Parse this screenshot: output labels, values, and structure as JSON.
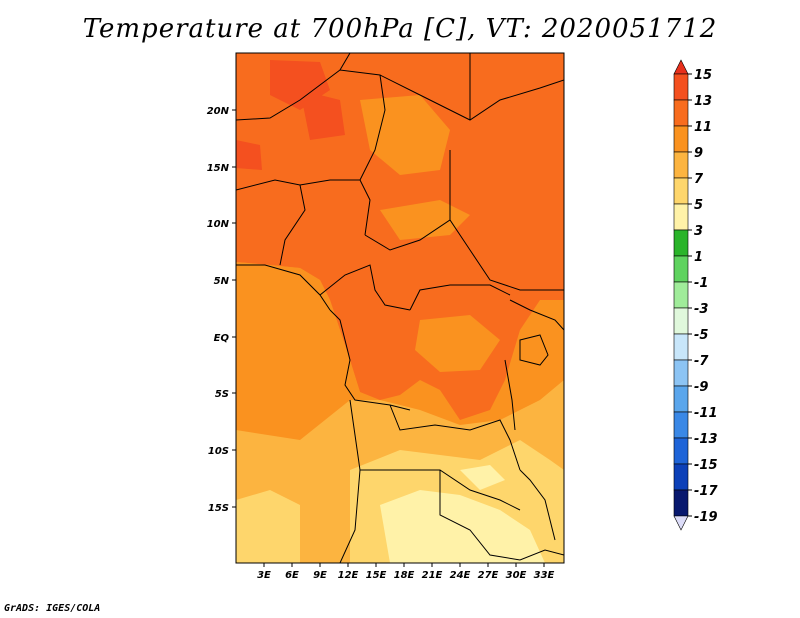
{
  "title": "Temperature at 700hPa [C], VT: 2020051712",
  "credit": "GrADS: IGES/COLA",
  "lat_labels": [
    "20N",
    "15N",
    "10N",
    "5N",
    "EQ",
    "5S",
    "10S",
    "15S"
  ],
  "lon_labels": [
    "3E",
    "6E",
    "9E",
    "12E",
    "15E",
    "18E",
    "21E",
    "24E",
    "27E",
    "30E",
    "33E"
  ],
  "colorbar": {
    "labels": [
      "15",
      "13",
      "11",
      "9",
      "7",
      "5",
      "3",
      "1",
      "-1",
      "-3",
      "-5",
      "-7",
      "-9",
      "-11",
      "-13",
      "-15",
      "-17",
      "-19"
    ],
    "colors": [
      "#e8301c",
      "#f4501f",
      "#f86c1e",
      "#fa921f",
      "#fcb440",
      "#fed66c",
      "#fff2a8",
      "#2ab42a",
      "#5fd35f",
      "#a0ec9a",
      "#e0f8dc",
      "#c8e6fa",
      "#8cc4f4",
      "#5aa6ec",
      "#3a88e6",
      "#1e64d8",
      "#0c40b8",
      "#08186e",
      "#dcdcf8"
    ]
  },
  "colors": {
    "c13": "#f4501f",
    "c11": "#f86c1e",
    "c9": "#fa921f",
    "c7": "#fcb440",
    "c5": "#fed66c",
    "c3": "#fff2a8"
  }
}
